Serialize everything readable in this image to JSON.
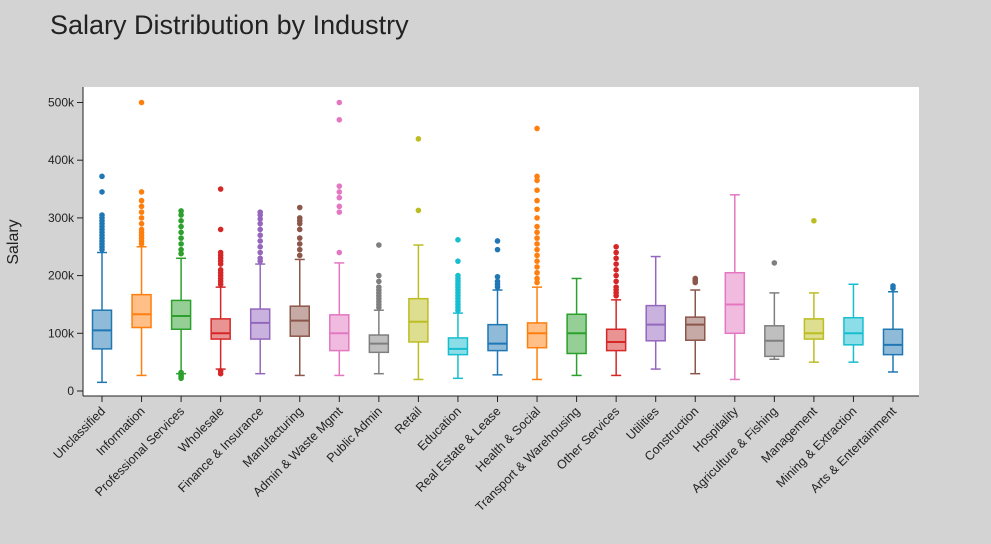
{
  "chart_data": {
    "type": "box",
    "title": "Salary Distribution by Industry",
    "ylabel": "Salary",
    "xlabel": "",
    "ylim": [
      0,
      520000
    ],
    "yticks": [
      0,
      100000,
      200000,
      300000,
      400000,
      500000
    ],
    "ytick_labels": [
      "0",
      "100k",
      "200k",
      "300k",
      "400k",
      "500k"
    ],
    "grid": false,
    "series": [
      {
        "name": "Unclassified",
        "color": "#1f77b4",
        "min": 15000,
        "q1": 73000,
        "median": 105000,
        "q3": 140000,
        "max": 240000,
        "outliers": [
          372000,
          345000,
          305000,
          300000,
          295000,
          290000,
          285000,
          280000,
          275000,
          270000,
          265000,
          260000,
          255000,
          250000,
          245000
        ]
      },
      {
        "name": "Information",
        "color": "#ff7f0e",
        "min": 27000,
        "q1": 110000,
        "median": 133000,
        "q3": 167000,
        "max": 250000,
        "outliers": [
          500000,
          345000,
          330000,
          320000,
          310000,
          300000,
          290000,
          280000,
          275000,
          270000,
          265000,
          260000,
          255000
        ]
      },
      {
        "name": "Professional Services",
        "color": "#2ca02c",
        "min": 30000,
        "q1": 107000,
        "median": 130000,
        "q3": 157000,
        "max": 230000,
        "outliers": [
          312000,
          305000,
          295000,
          285000,
          275000,
          265000,
          255000,
          245000,
          238000,
          32000,
          28000,
          25000,
          22000
        ]
      },
      {
        "name": "Wholesale",
        "color": "#d62728",
        "min": 38000,
        "q1": 90000,
        "median": 100000,
        "q3": 125000,
        "max": 180000,
        "outliers": [
          350000,
          280000,
          240000,
          235000,
          230000,
          225000,
          220000,
          210000,
          205000,
          200000,
          195000,
          190000,
          185000,
          35000,
          30000
        ]
      },
      {
        "name": "Finance & Insurance",
        "color": "#9467bd",
        "min": 30000,
        "q1": 90000,
        "median": 118000,
        "q3": 142000,
        "max": 220000,
        "outliers": [
          310000,
          305000,
          298000,
          290000,
          280000,
          270000,
          260000,
          250000,
          240000,
          230000,
          225000
        ]
      },
      {
        "name": "Manufacturing",
        "color": "#8c564b",
        "min": 27000,
        "q1": 95000,
        "median": 122000,
        "q3": 147000,
        "max": 228000,
        "outliers": [
          318000,
          300000,
          295000,
          290000,
          280000,
          265000,
          255000,
          245000,
          235000
        ]
      },
      {
        "name": "Admin & Waste Mgmt",
        "color": "#e377c2",
        "min": 27000,
        "q1": 70000,
        "median": 100000,
        "q3": 132000,
        "max": 222000,
        "outliers": [
          500000,
          470000,
          355000,
          345000,
          335000,
          320000,
          310000,
          240000
        ]
      },
      {
        "name": "Public Admin",
        "color": "#7f7f7f",
        "min": 30000,
        "q1": 67000,
        "median": 82000,
        "q3": 97000,
        "max": 140000,
        "outliers": [
          253000,
          200000,
          190000,
          180000,
          175000,
          170000,
          165000,
          160000,
          155000,
          150000,
          145000
        ]
      },
      {
        "name": "Retail",
        "color": "#bcbd22",
        "min": 20000,
        "q1": 85000,
        "median": 120000,
        "q3": 160000,
        "max": 253000,
        "outliers": [
          437000,
          313000
        ]
      },
      {
        "name": "Education",
        "color": "#17becf",
        "min": 22000,
        "q1": 63000,
        "median": 73000,
        "q3": 92000,
        "max": 135000,
        "outliers": [
          262000,
          225000,
          200000,
          195000,
          190000,
          185000,
          180000,
          175000,
          170000,
          165000,
          160000,
          155000,
          150000,
          145000,
          140000
        ]
      },
      {
        "name": "Real Estate & Lease",
        "color": "#1f77b4",
        "min": 28000,
        "q1": 70000,
        "median": 82000,
        "q3": 115000,
        "max": 175000,
        "outliers": [
          260000,
          245000,
          198000,
          190000,
          185000,
          180000
        ]
      },
      {
        "name": "Health & Social",
        "color": "#ff7f0e",
        "min": 20000,
        "q1": 75000,
        "median": 100000,
        "q3": 118000,
        "max": 180000,
        "outliers": [
          455000,
          372000,
          365000,
          348000,
          330000,
          315000,
          300000,
          285000,
          275000,
          265000,
          255000,
          245000,
          235000,
          225000,
          215000,
          205000,
          195000,
          188000
        ]
      },
      {
        "name": "Transport & Warehousing",
        "color": "#2ca02c",
        "min": 27000,
        "q1": 65000,
        "median": 100000,
        "q3": 133000,
        "max": 195000,
        "outliers": []
      },
      {
        "name": "Other Services",
        "color": "#d62728",
        "min": 27000,
        "q1": 70000,
        "median": 85000,
        "q3": 107000,
        "max": 158000,
        "outliers": [
          250000,
          240000,
          230000,
          220000,
          210000,
          200000,
          190000,
          180000,
          175000,
          170000,
          165000
        ]
      },
      {
        "name": "Utilities",
        "color": "#9467bd",
        "min": 38000,
        "q1": 87000,
        "median": 115000,
        "q3": 148000,
        "max": 233000,
        "outliers": []
      },
      {
        "name": "Construction",
        "color": "#8c564b",
        "min": 30000,
        "q1": 88000,
        "median": 115000,
        "q3": 128000,
        "max": 175000,
        "outliers": [
          195000,
          192000,
          188000
        ]
      },
      {
        "name": "Hospitality",
        "color": "#e377c2",
        "min": 20000,
        "q1": 100000,
        "median": 150000,
        "q3": 205000,
        "max": 340000,
        "outliers": []
      },
      {
        "name": "Agriculture & Fishing",
        "color": "#7f7f7f",
        "min": 55000,
        "q1": 60000,
        "median": 87000,
        "q3": 113000,
        "max": 170000,
        "outliers": [
          222000
        ]
      },
      {
        "name": "Management",
        "color": "#bcbd22",
        "min": 50000,
        "q1": 90000,
        "median": 100000,
        "q3": 125000,
        "max": 170000,
        "outliers": [
          295000
        ]
      },
      {
        "name": "Mining & Extraction",
        "color": "#17becf",
        "min": 50000,
        "q1": 80000,
        "median": 100000,
        "q3": 127000,
        "max": 185000,
        "outliers": []
      },
      {
        "name": "Arts & Entertainment",
        "color": "#1f77b4",
        "min": 33000,
        "q1": 63000,
        "median": 80000,
        "q3": 107000,
        "max": 172000,
        "outliers": [
          182000,
          178000
        ]
      }
    ]
  }
}
